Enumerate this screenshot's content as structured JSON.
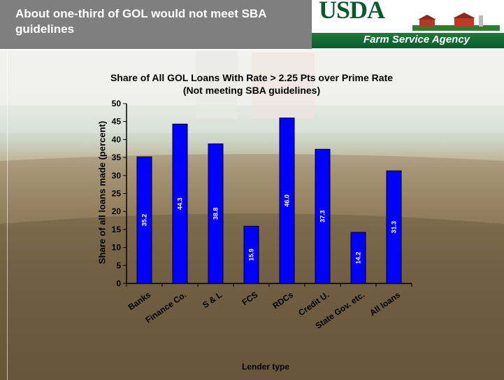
{
  "header": {
    "title": "About one-third of GOL would not meet SBA guidelines",
    "logo_text": "USDA",
    "agency": "Farm Service Agency"
  },
  "colors": {
    "bar": "#0000ff",
    "header_gray": "#7f7f7f",
    "usda_green": "#0b5a2b"
  },
  "chart_data": {
    "type": "bar",
    "title_line1": "Share of All GOL Loans With Rate > 2.25 Pts over Prime Rate",
    "title_line2": "(Not meeting SBA guidelines)",
    "xlabel": "Lender type",
    "ylabel": "Share of all loans made (percent)",
    "categories": [
      "Banks",
      "Finance Co.",
      "S & L",
      "FCS",
      "RDCs",
      "Credit U.",
      "State Gov. etc.",
      "All loans"
    ],
    "values": [
      35.2,
      44.3,
      38.8,
      15.9,
      46.0,
      37.3,
      14.2,
      31.3
    ],
    "data_labels": [
      "35.2",
      "44.3",
      "38.8",
      "15.9",
      "46.0",
      "37.3",
      "14.2",
      "31.3"
    ],
    "ylim": [
      0,
      50
    ],
    "yticks": [
      "0",
      "5",
      "10",
      "15",
      "20",
      "25",
      "30",
      "35",
      "40",
      "45",
      "50"
    ],
    "grid": false,
    "legend": "none"
  }
}
